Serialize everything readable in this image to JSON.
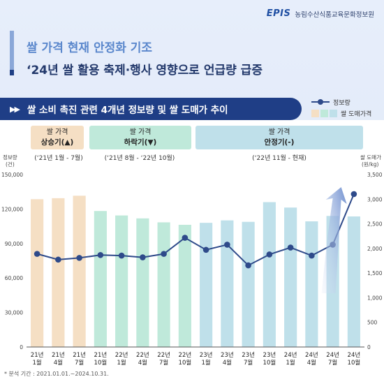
{
  "header": {
    "logo_mark": "EPIS",
    "org_name": "농림수산식품교육문화정보원"
  },
  "title": {
    "line1": "쌀 가격 현재 안정화 기조",
    "line2": "‘24년 쌀 활용 축제·행사 영향으로 언급량 급증"
  },
  "subtitle": {
    "icon": "double-triangle-right-icon",
    "glyph": "▶▶",
    "text": "쌀 소비 촉진 관련 4개년 정보량 및 쌀 도매가 추이"
  },
  "legend": {
    "line_label": "정보량",
    "bar_label": "쌀 도매가격"
  },
  "phases": [
    {
      "line1": "쌀 가격",
      "line2": "상승기(▲)",
      "range": "(‘21년 1월 - 7월)",
      "color": "#f5dfc4"
    },
    {
      "line1": "쌀 가격",
      "line2": "하락기(▼)",
      "range": "(‘21년 8월 - ‘22년 10월)",
      "color": "#bfe9da"
    },
    {
      "line1": "쌀 가격",
      "line2": "안정기(-)",
      "range": "(‘22년 11월 - 현재)",
      "color": "#bfe0ea"
    }
  ],
  "footnote": "* 분석 기간 : 2021.01.01.~2024.10.31.",
  "chart_data": {
    "type": "bar",
    "categories": [
      [
        "21년",
        "1월"
      ],
      [
        "21년",
        "4월"
      ],
      [
        "21년",
        "7월"
      ],
      [
        "21년",
        "10월"
      ],
      [
        "22년",
        "1월"
      ],
      [
        "22년",
        "4월"
      ],
      [
        "22년",
        "7월"
      ],
      [
        "22년",
        "10월"
      ],
      [
        "23년",
        "1월"
      ],
      [
        "23년",
        "4월"
      ],
      [
        "23년",
        "7월"
      ],
      [
        "23년",
        "10월"
      ],
      [
        "24년",
        "1월"
      ],
      [
        "24년",
        "4월"
      ],
      [
        "24년",
        "7월"
      ],
      [
        "24년",
        "10월"
      ]
    ],
    "left_axis": {
      "label_line1": "정보량",
      "label_line2": "(건)",
      "ticks": [
        "0",
        "30,000",
        "60,000",
        "90,000",
        "120,000",
        "150,000"
      ],
      "tick_values": [
        0,
        30000,
        60000,
        90000,
        120000,
        150000
      ],
      "range": [
        0,
        150000
      ]
    },
    "right_axis": {
      "label_line1": "쌀 도매가",
      "label_line2": "(원/kg)",
      "ticks": [
        "0",
        "500",
        "1,000",
        "1,500",
        "2,000",
        "2,500",
        "3,000",
        "3,500"
      ],
      "tick_values": [
        0,
        500,
        1000,
        1500,
        2000,
        2500,
        3000,
        3500
      ],
      "range": [
        0,
        3500
      ]
    },
    "series": [
      {
        "name": "쌀 도매가격",
        "type": "bar",
        "axis": "right",
        "values": [
          3000,
          3020,
          3070,
          2760,
          2670,
          2610,
          2530,
          2480,
          2520,
          2570,
          2540,
          2940,
          2830,
          2550,
          2660,
          2650
        ],
        "colors": [
          "#f5dfc4",
          "#f5dfc4",
          "#f5dfc4",
          "#bfe9da",
          "#bfe9da",
          "#bfe9da",
          "#bfe9da",
          "#bfe9da",
          "#bfe0ea",
          "#bfe0ea",
          "#bfe0ea",
          "#bfe0ea",
          "#bfe0ea",
          "#bfe0ea",
          "#bfe0ea",
          "#bfe0ea"
        ]
      },
      {
        "name": "정보량",
        "type": "line",
        "axis": "left",
        "color": "#2e4a8a",
        "values": [
          81000,
          76000,
          77500,
          80000,
          79500,
          78000,
          81000,
          95000,
          84500,
          89000,
          71000,
          80500,
          86500,
          79500,
          89000,
          133000
        ]
      }
    ],
    "trend_arrow": "up",
    "grid": false
  }
}
